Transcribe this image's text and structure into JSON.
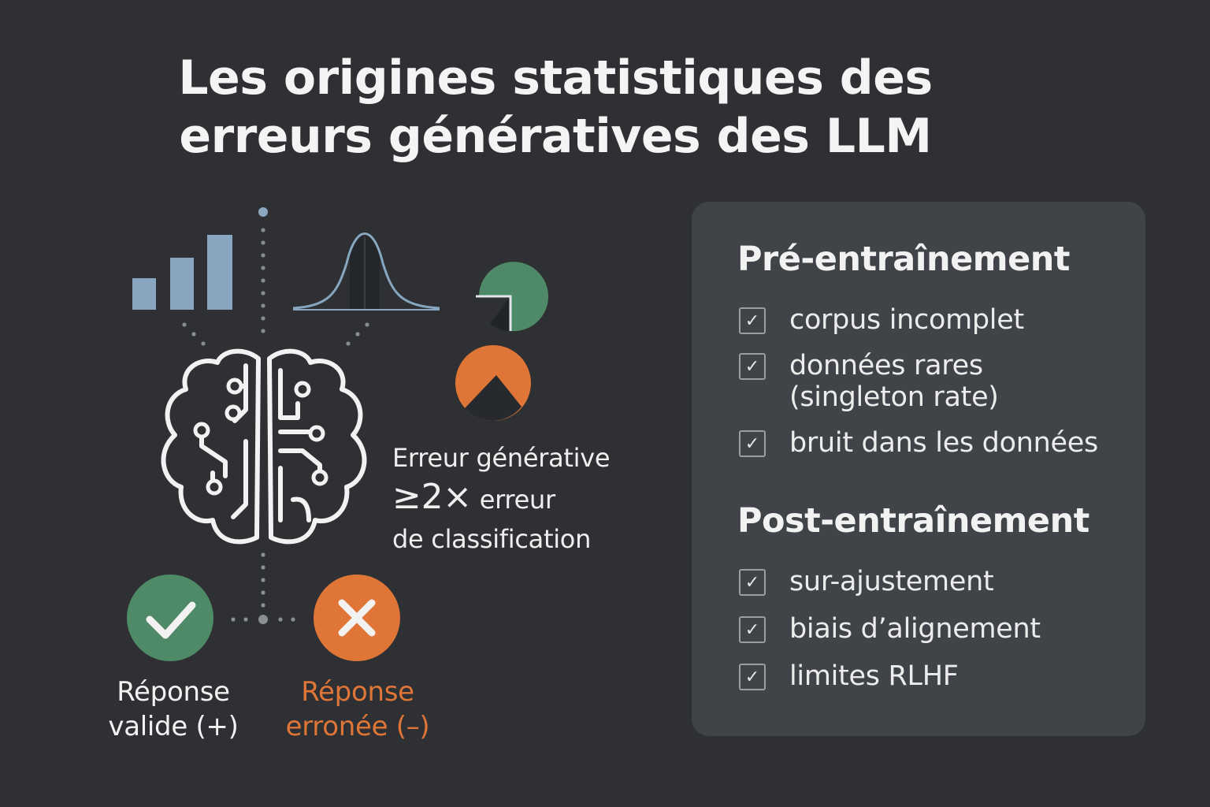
{
  "title": {
    "line1": "Les origines statistiques des",
    "line2": "erreurs génératives des LLM"
  },
  "formula": {
    "line1": "Erreur générative",
    "symbol": "≥",
    "factor": "2",
    "times": "×",
    "line2_rest": "erreur",
    "line3": "de classification"
  },
  "outcomes": {
    "valid": {
      "line1": "Réponse",
      "line2": "valide (+)",
      "color": "#4f8a68"
    },
    "wrong": {
      "line1": "Réponse",
      "line2": "erronée (–)",
      "color": "#df7638"
    }
  },
  "panel": {
    "pre": {
      "title": "Pré-entraînement",
      "items": [
        {
          "line1": "corpus incomplet",
          "line2": ""
        },
        {
          "line1": "données rares",
          "line2": "(singleton rate)"
        },
        {
          "line1": "bruit dans les données",
          "line2": ""
        }
      ]
    },
    "post": {
      "title": "Post-entraînement",
      "items": [
        {
          "line1": "sur-ajustement",
          "line2": ""
        },
        {
          "line1": "biais d’alignement",
          "line2": ""
        },
        {
          "line1": "limites RLHF",
          "line2": ""
        }
      ]
    },
    "check_glyph": "✓"
  },
  "icons": [
    "bar-chart-icon",
    "bell-curve-icon",
    "pie-chart-icon",
    "brain-circuit-icon",
    "check-icon",
    "cross-icon"
  ],
  "colors": {
    "background": "#2e3033",
    "panel": "#404347",
    "green": "#4f8a68",
    "orange": "#df7638",
    "bar_blue": "#87a6bf"
  }
}
